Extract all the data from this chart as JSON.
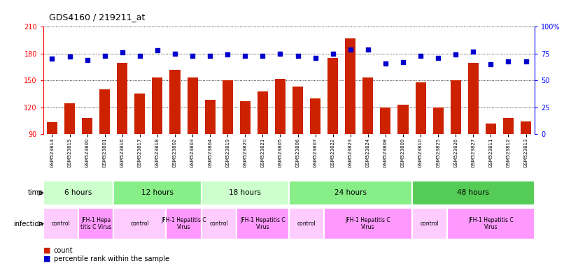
{
  "title": "GDS4160 / 219211_at",
  "samples": [
    "GSM523814",
    "GSM523815",
    "GSM523800",
    "GSM523801",
    "GSM523816",
    "GSM523817",
    "GSM523818",
    "GSM523802",
    "GSM523803",
    "GSM523804",
    "GSM523819",
    "GSM523820",
    "GSM523821",
    "GSM523805",
    "GSM523806",
    "GSM523807",
    "GSM523822",
    "GSM523823",
    "GSM523824",
    "GSM523808",
    "GSM523809",
    "GSM523810",
    "GSM523825",
    "GSM523826",
    "GSM523827",
    "GSM523811",
    "GSM523812",
    "GSM523813"
  ],
  "counts": [
    103,
    124,
    108,
    140,
    170,
    135,
    153,
    162,
    153,
    128,
    150,
    127,
    138,
    152,
    143,
    130,
    175,
    197,
    153,
    120,
    123,
    148,
    120,
    150,
    170,
    102,
    108,
    104
  ],
  "percentile": [
    70,
    72,
    69,
    73,
    76,
    73,
    78,
    75,
    73,
    73,
    74,
    73,
    73,
    75,
    73,
    71,
    75,
    79,
    79,
    66,
    67,
    73,
    71,
    74,
    77,
    65,
    68,
    68
  ],
  "time_groups": [
    {
      "label": "6 hours",
      "start": 0,
      "end": 4,
      "color": "#ccffcc"
    },
    {
      "label": "12 hours",
      "start": 4,
      "end": 9,
      "color": "#88ee88"
    },
    {
      "label": "18 hours",
      "start": 9,
      "end": 14,
      "color": "#ccffcc"
    },
    {
      "label": "24 hours",
      "start": 14,
      "end": 21,
      "color": "#88ee88"
    },
    {
      "label": "48 hours",
      "start": 21,
      "end": 28,
      "color": "#55cc55"
    }
  ],
  "infection_groups": [
    {
      "label": "control",
      "start": 0,
      "end": 2,
      "color": "#ffccff"
    },
    {
      "label": "JFH-1 Hepa\ntitis C Virus",
      "start": 2,
      "end": 4,
      "color": "#ff99ff"
    },
    {
      "label": "control",
      "start": 4,
      "end": 7,
      "color": "#ffccff"
    },
    {
      "label": "JFH-1 Hepatitis C\nVirus",
      "start": 7,
      "end": 9,
      "color": "#ff99ff"
    },
    {
      "label": "control",
      "start": 9,
      "end": 11,
      "color": "#ffccff"
    },
    {
      "label": "JFH-1 Hepatitis C\nVirus",
      "start": 11,
      "end": 14,
      "color": "#ff99ff"
    },
    {
      "label": "control",
      "start": 14,
      "end": 16,
      "color": "#ffccff"
    },
    {
      "label": "JFH-1 Hepatitis C\nVirus",
      "start": 16,
      "end": 21,
      "color": "#ff99ff"
    },
    {
      "label": "control",
      "start": 21,
      "end": 23,
      "color": "#ffccff"
    },
    {
      "label": "JFH-1 Hepatitis C\nVirus",
      "start": 23,
      "end": 28,
      "color": "#ff99ff"
    }
  ],
  "bar_color": "#cc2200",
  "marker_color": "#0000cc",
  "left_ylim": [
    90,
    210
  ],
  "right_ylim": [
    0,
    100
  ],
  "left_yticks": [
    90,
    120,
    150,
    180,
    210
  ],
  "right_yticks": [
    0,
    25,
    50,
    75,
    100
  ],
  "right_yticklabels": [
    "0",
    "25",
    "50",
    "75",
    "100%"
  ],
  "bg_color": "#ffffff",
  "plot_bg": "#ffffff"
}
